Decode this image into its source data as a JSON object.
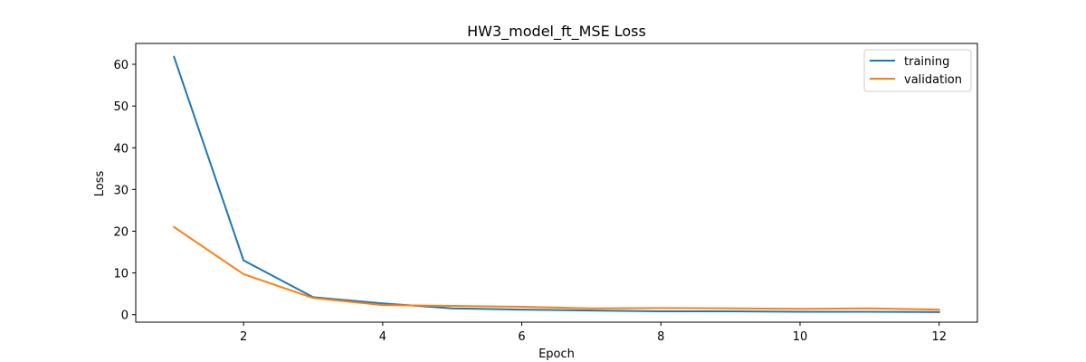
{
  "chart_data": {
    "type": "line",
    "title": "HW3_model_ft_MSE Loss",
    "xlabel": "Epoch",
    "ylabel": "Loss",
    "x": [
      1,
      2,
      3,
      4,
      5,
      6,
      7,
      8,
      9,
      10,
      11,
      12
    ],
    "xlim": [
      0.45,
      12.55
    ],
    "ylim": [
      -1.8,
      65
    ],
    "xticks": [
      2,
      4,
      6,
      8,
      10,
      12
    ],
    "yticks": [
      0,
      10,
      20,
      30,
      40,
      50,
      60
    ],
    "grid": false,
    "legend_position": "top-right",
    "series": [
      {
        "name": "training",
        "color": "#1f77b4",
        "values": [
          61.8,
          13.0,
          4.2,
          2.7,
          1.5,
          1.2,
          1.0,
          0.8,
          0.8,
          0.7,
          0.7,
          0.6
        ]
      },
      {
        "name": "validation",
        "color": "#ff7f0e",
        "values": [
          21.0,
          9.7,
          4.0,
          2.3,
          2.1,
          1.9,
          1.5,
          1.6,
          1.5,
          1.4,
          1.5,
          1.2
        ]
      }
    ]
  }
}
